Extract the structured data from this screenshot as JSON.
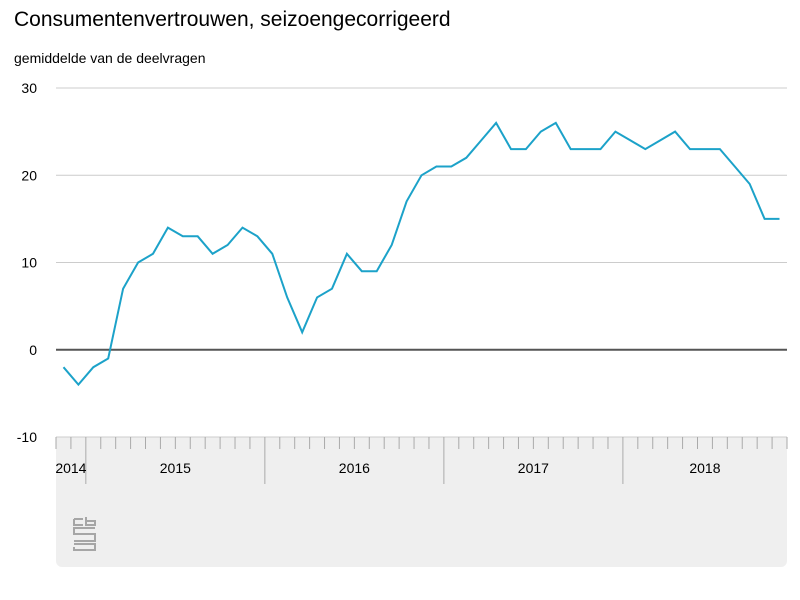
{
  "title": "Consumentenvertrouwen, seizoengecorrigeerd",
  "subtitle": "gemiddelde van de deelvragen",
  "colors": {
    "line": "#1ca2c9",
    "grid": "#cccccc",
    "zero": "#555555",
    "panel": "#efefef",
    "logo": "#a6a6a6"
  },
  "logo_icon": "cbs-logo-icon",
  "chart_data": {
    "type": "line",
    "title": "Consumentenvertrouwen, seizoengecorrigeerd",
    "ylabel": "gemiddelde van de deelvragen",
    "ylim": [
      -10,
      30
    ],
    "yticks": [
      -10,
      0,
      10,
      20,
      30
    ],
    "x_start": "2014-11",
    "x_end": "2018-12",
    "year_labels": [
      "2014",
      "2015",
      "2016",
      "2017",
      "2018"
    ],
    "grid": true,
    "legend": "none",
    "series": [
      {
        "x": [
          "2014-11",
          "2014-12",
          "2015-01",
          "2015-02",
          "2015-03",
          "2015-04",
          "2015-05",
          "2015-06",
          "2015-07",
          "2015-08",
          "2015-09",
          "2015-10",
          "2015-11",
          "2015-12",
          "2016-01",
          "2016-02",
          "2016-03",
          "2016-04",
          "2016-05",
          "2016-06",
          "2016-07",
          "2016-08",
          "2016-09",
          "2016-10",
          "2016-11",
          "2016-12",
          "2017-01",
          "2017-02",
          "2017-03",
          "2017-04",
          "2017-05",
          "2017-06",
          "2017-07",
          "2017-08",
          "2017-09",
          "2017-10",
          "2017-11",
          "2017-12",
          "2018-01",
          "2018-02",
          "2018-03",
          "2018-04",
          "2018-05",
          "2018-06",
          "2018-07",
          "2018-08",
          "2018-09",
          "2018-10",
          "2018-11"
        ],
        "values": [
          -2,
          -4,
          -2,
          -1,
          7,
          10,
          11,
          14,
          13,
          13,
          11,
          12,
          14,
          13,
          11,
          6,
          2,
          6,
          7,
          11,
          9,
          9,
          12,
          17,
          20,
          21,
          21,
          22,
          24,
          26,
          23,
          23,
          25,
          26,
          23,
          23,
          23,
          25,
          24,
          23,
          24,
          25,
          23,
          23,
          23,
          21,
          19,
          15,
          15
        ]
      }
    ]
  }
}
